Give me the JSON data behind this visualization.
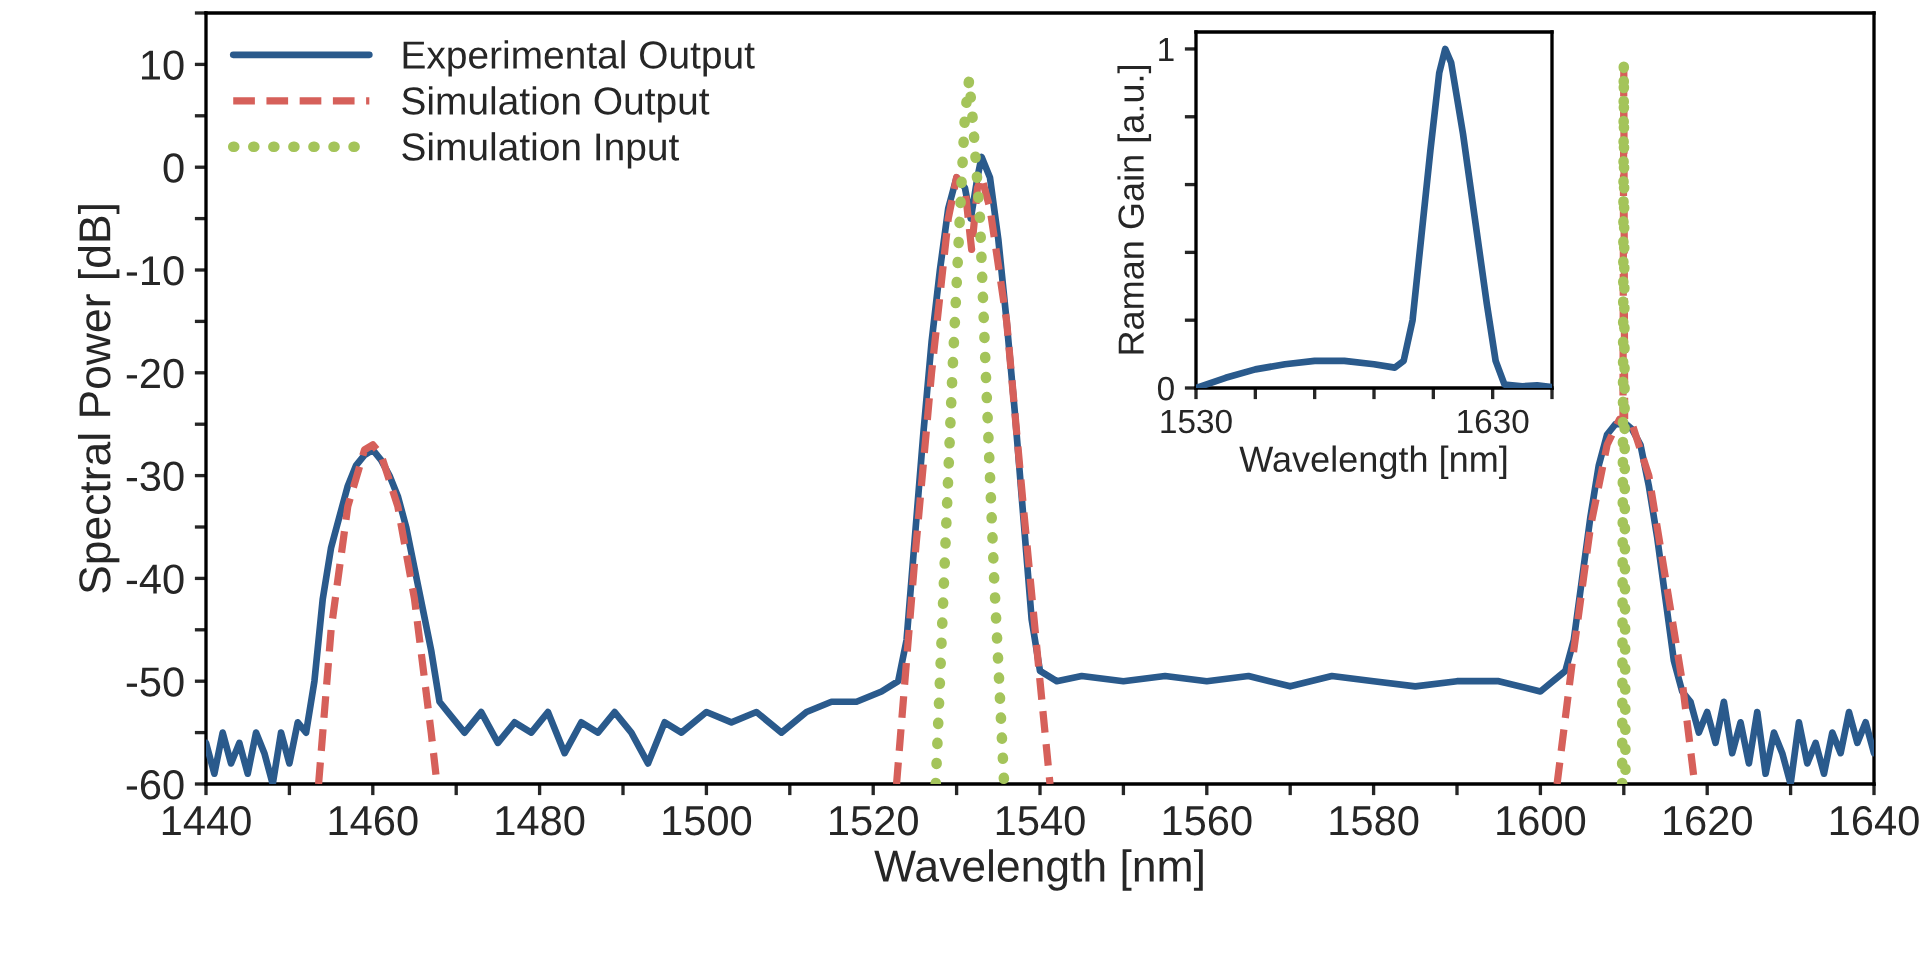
{
  "chart_data": [
    {
      "type": "line",
      "xlabel": "Wavelength [nm]",
      "ylabel": "Spectral Power [dB]",
      "xlim": [
        1440,
        1640
      ],
      "xticks": [
        1440,
        {
          "value": 1450,
          "label": null
        },
        1460,
        {
          "value": 1470,
          "label": null
        },
        1480,
        {
          "value": 1490,
          "label": null
        },
        1500,
        {
          "value": 1510,
          "label": null
        },
        1520,
        {
          "value": 1530,
          "label": null
        },
        1540,
        {
          "value": 1550,
          "label": null
        },
        1560,
        {
          "value": 1570,
          "label": null
        },
        1580,
        {
          "value": 1590,
          "label": null
        },
        1600,
        {
          "value": 1610,
          "label": null
        },
        1620,
        {
          "value": 1630,
          "label": null
        },
        1640
      ],
      "ylim": [
        -60,
        15
      ],
      "yticks": [
        -60,
        {
          "value": -55,
          "label": null
        },
        -50,
        {
          "value": -45,
          "label": null
        },
        -40,
        {
          "value": -35,
          "label": null
        },
        -30,
        {
          "value": -25,
          "label": null
        },
        -20,
        {
          "value": -15,
          "label": null
        },
        -10,
        {
          "value": -5,
          "label": null
        },
        0,
        {
          "value": 5,
          "label": null
        },
        10,
        {
          "value": 15,
          "label": null
        }
      ],
      "grid": false,
      "legend": "top left",
      "series": [
        {
          "name": "Experimental Output",
          "color": "#2a5a8c",
          "line_style": "solid",
          "x": [
            1440,
            1441,
            1442,
            1443,
            1444,
            1445,
            1446,
            1447,
            1448,
            1449,
            1450,
            1451,
            1452,
            1453,
            1454,
            1455,
            1456,
            1457,
            1458,
            1459,
            1460,
            1461,
            1462,
            1463,
            1464,
            1465,
            1466,
            1467,
            1468,
            1469,
            1471,
            1473,
            1475,
            1477,
            1479,
            1481,
            1483,
            1485,
            1487,
            1489,
            1491,
            1493,
            1495,
            1497,
            1500,
            1503,
            1506,
            1509,
            1512,
            1515,
            1518,
            1521,
            1523,
            1524,
            1525,
            1526,
            1527,
            1528,
            1529,
            1530,
            1531,
            1531.7,
            1532.5,
            1533,
            1534,
            1535,
            1536,
            1537,
            1538,
            1539,
            1540,
            1542,
            1545,
            1550,
            1555,
            1560,
            1565,
            1570,
            1575,
            1580,
            1585,
            1590,
            1595,
            1600,
            1603,
            1604,
            1605,
            1606,
            1607,
            1608,
            1609,
            1609.8,
            1610,
            1610.3,
            1611,
            1612,
            1613,
            1614,
            1615,
            1616,
            1617,
            1618,
            1619,
            1620,
            1621,
            1622,
            1623,
            1624,
            1625,
            1626,
            1627,
            1628,
            1629,
            1630,
            1631,
            1632,
            1633,
            1634,
            1635,
            1636,
            1637,
            1638,
            1639,
            1640
          ],
          "values": [
            -56,
            -59,
            -55,
            -58,
            -56,
            -59,
            -55,
            -57,
            -60,
            -55,
            -58,
            -54,
            -55,
            -50,
            -42,
            -37,
            -34,
            -31,
            -29,
            -28,
            -27.5,
            -28.5,
            -30,
            -32,
            -35,
            -39,
            -43,
            -47,
            -52,
            -53,
            -55,
            -53,
            -56,
            -54,
            -55,
            -53,
            -57,
            -54,
            -55,
            -53,
            -55,
            -58,
            -54,
            -55,
            -53,
            -54,
            -53,
            -55,
            -53,
            -52,
            -52,
            -51,
            -50,
            -46,
            -36,
            -26,
            -17,
            -10,
            -4,
            -1,
            -2,
            -5,
            -1,
            1,
            -1,
            -7,
            -15,
            -24,
            -34,
            -44,
            -49,
            -50,
            -49.5,
            -50,
            -49.5,
            -50,
            -49.5,
            -50.5,
            -49.5,
            -50,
            -50.5,
            -50,
            -50,
            -51,
            -49,
            -46,
            -40,
            -34,
            -29,
            -26,
            -25,
            -25,
            null,
            -25,
            -25.5,
            -27,
            -31,
            -36,
            -42,
            -48,
            -51,
            -52,
            -55,
            -53,
            -56,
            -52,
            -57,
            -54,
            -58,
            -53,
            -59,
            -55,
            -57,
            -60,
            -54,
            -58,
            -56,
            -59,
            -55,
            -57,
            -53,
            -56,
            -54,
            -57
          ]
        },
        {
          "name": "Simulation Output",
          "color": "#d6605a",
          "line_style": "dashed",
          "x": [
            1453.5,
            1455,
            1457,
            1459,
            1460,
            1461,
            1463,
            1465,
            1467,
            1467.7,
            1495,
            1522.8,
            1524,
            1525,
            1527,
            1529,
            1530,
            1531,
            1531.8,
            1532.5,
            1533,
            1534,
            1536,
            1538,
            1540,
            1541.2,
            1570,
            1602,
            1604,
            1606,
            1608,
            1609.5,
            1609.9,
            1610,
            1610.1,
            1611,
            1613,
            1615,
            1617,
            1618.5
          ],
          "values": [
            -60,
            -45,
            -33,
            -27.5,
            -27,
            -28,
            -33,
            -42,
            -55,
            -60,
            null,
            -60,
            -48,
            -38,
            -20,
            -5,
            -1,
            -2,
            -8,
            -2,
            -1,
            -4,
            -15,
            -33,
            -50,
            -60,
            null,
            -60,
            -47,
            -35,
            -27,
            -24.5,
            -24.5,
            10,
            -24.5,
            -25,
            -30,
            -40,
            -50,
            -60
          ]
        },
        {
          "name": "Simulation Input",
          "color": "#a4c45a",
          "line_style": "dotted",
          "x": [
            1527.5,
            1528.5,
            1529.5,
            1530.5,
            1531,
            1531.5,
            1532,
            1532.8,
            1533.5,
            1534.5,
            1535.7,
            1570,
            1609.8,
            1610,
            1610.2
          ],
          "values": [
            -60,
            -40,
            -20,
            -3,
            5,
            8.5,
            4,
            -5,
            -20,
            -40,
            -60,
            null,
            -60,
            10,
            -60
          ]
        }
      ]
    },
    {
      "type": "line",
      "xlabel": "Wavelength [nm]",
      "ylabel": "Raman Gain [a.u.]",
      "xlim": [
        1530,
        1650
      ],
      "xticks": [
        1530,
        {
          "value": 1550,
          "label": null
        },
        {
          "value": 1570,
          "label": null
        },
        {
          "value": 1590,
          "label": null
        },
        {
          "value": 1610,
          "label": null
        },
        1630,
        {
          "value": 1650,
          "label": null
        }
      ],
      "ylim": [
        0,
        1.05
      ],
      "yticks": [
        0,
        {
          "value": 0.2,
          "label": null
        },
        {
          "value": 0.4,
          "label": null
        },
        {
          "value": 0.6,
          "label": null
        },
        {
          "value": 0.8,
          "label": null
        },
        1
      ],
      "grid": false,
      "series": [
        {
          "color": "#2a5a8c",
          "line_style": "solid",
          "x": [
            1530,
            1540,
            1550,
            1560,
            1570,
            1580,
            1590,
            1597,
            1600,
            1603,
            1606,
            1609,
            1612,
            1614,
            1616,
            1620,
            1624,
            1628,
            1631,
            1634,
            1640,
            1645,
            1650
          ],
          "values": [
            0,
            0.03,
            0.055,
            0.07,
            0.08,
            0.08,
            0.07,
            0.06,
            0.08,
            0.2,
            0.45,
            0.7,
            0.93,
            1.0,
            0.96,
            0.75,
            0.5,
            0.25,
            0.08,
            0.01,
            0.005,
            0.008,
            0.003
          ]
        }
      ]
    }
  ]
}
